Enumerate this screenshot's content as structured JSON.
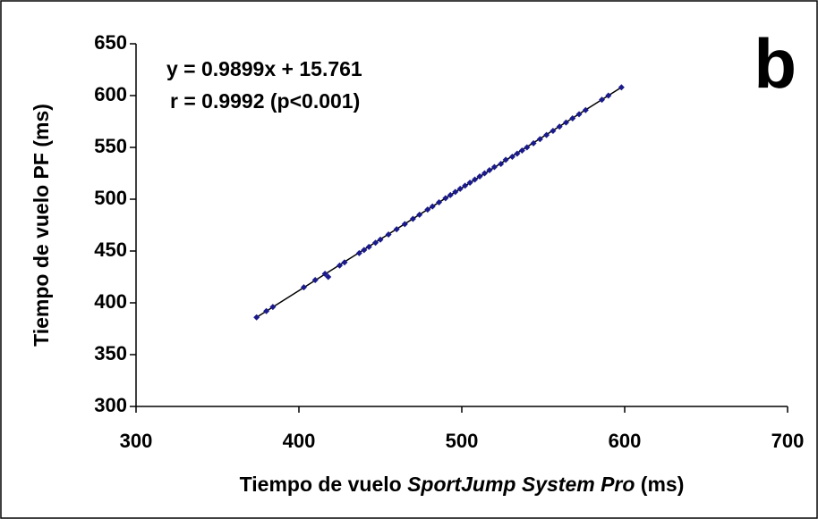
{
  "chart_data": {
    "type": "scatter",
    "panel_label": "b",
    "annotations": [
      "y = 0.9899x + 15.761",
      "r = 0.9992 (p<0.001)"
    ],
    "xlabel": [
      "Tiempo de vuelo ",
      "SportJump System Pro",
      " (ms)"
    ],
    "ylabel": "Tiempo de vuelo PF (ms)",
    "xlim": [
      300,
      700
    ],
    "xticks": [
      300,
      400,
      500,
      600,
      700
    ],
    "ylim": [
      300,
      650
    ],
    "yticks": [
      300,
      350,
      400,
      450,
      500,
      550,
      600,
      650
    ],
    "grid": false,
    "color": "#1a1a8c",
    "trendline": {
      "color": "#000000",
      "x": [
        374,
        598
      ],
      "y": [
        386,
        608
      ]
    },
    "x": [
      374,
      380,
      384,
      403,
      410,
      416,
      418,
      425,
      428,
      437,
      440,
      443,
      447,
      450,
      455,
      460,
      465,
      470,
      474,
      479,
      482,
      486,
      490,
      493,
      496,
      499,
      502,
      505,
      508,
      511,
      514,
      517,
      520,
      524,
      527,
      531,
      534,
      537,
      540,
      544,
      548,
      552,
      556,
      560,
      564,
      568,
      572,
      576,
      586,
      590,
      598
    ],
    "y": [
      386,
      392,
      396,
      415,
      422,
      428,
      425,
      436,
      439,
      448,
      451,
      454,
      458,
      461,
      466,
      471,
      476,
      481,
      485,
      490,
      493,
      497,
      501,
      504,
      507,
      510,
      513,
      516,
      519,
      522,
      525,
      528,
      531,
      534,
      538,
      541,
      544,
      547,
      550,
      554,
      558,
      562,
      566,
      570,
      574,
      578,
      582,
      586,
      596,
      600,
      608
    ]
  }
}
